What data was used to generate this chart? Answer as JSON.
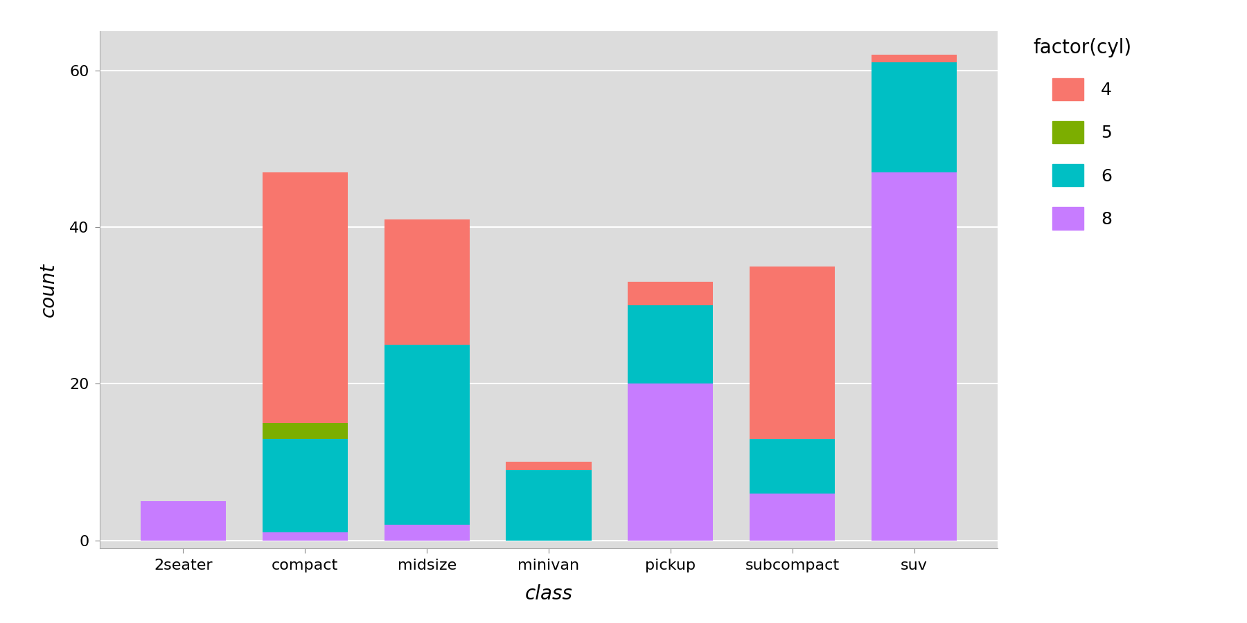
{
  "categories": [
    "2seater",
    "compact",
    "midsize",
    "minivan",
    "pickup",
    "subcompact",
    "suv"
  ],
  "cyl4": [
    0,
    32,
    16,
    1,
    3,
    22,
    1
  ],
  "cyl5": [
    0,
    2,
    0,
    0,
    0,
    0,
    0
  ],
  "cyl6": [
    0,
    12,
    23,
    9,
    10,
    7,
    14
  ],
  "cyl8": [
    5,
    1,
    2,
    0,
    20,
    6,
    47
  ],
  "colors": {
    "4": "#F8766D",
    "5": "#7CAE00",
    "6": "#00BFC4",
    "8": "#C77CFF"
  },
  "xlabel": "class",
  "ylabel": "count",
  "legend_title": "factor(cyl)",
  "legend_labels": [
    "4",
    "5",
    "6",
    "8"
  ],
  "ylim": [
    -1,
    65
  ],
  "yticks": [
    0,
    20,
    40,
    60
  ],
  "panel_background": "#DCDCDC",
  "figure_background": "#FFFFFF",
  "grid_color": "#FFFFFF",
  "bar_width": 0.7,
  "axis_label_fontsize": 20,
  "tick_fontsize": 16,
  "legend_fontsize": 18,
  "legend_title_fontsize": 20
}
